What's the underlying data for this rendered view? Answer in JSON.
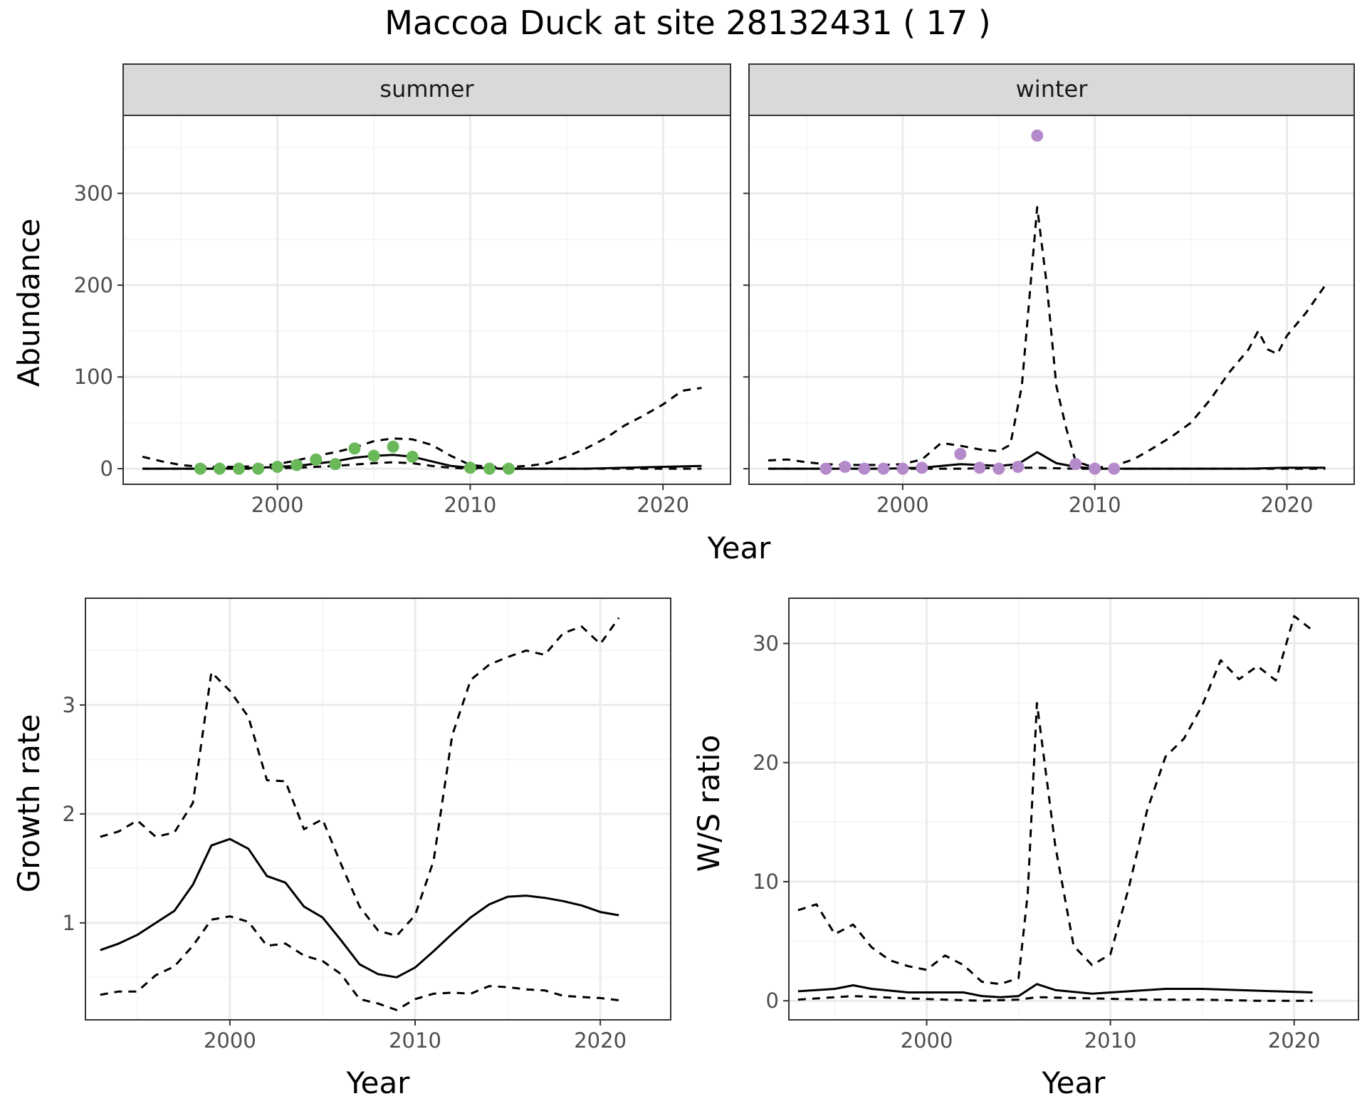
{
  "title": "Maccoa Duck at site 28132431 ( 17 )",
  "colors": {
    "summer_points": "#6ab85a",
    "winter_points": "#b58acb",
    "lines": "#000000",
    "grid_major": "#ebebeb",
    "grid_minor": "#f4f4f4",
    "strip_fill": "#d9d9d9",
    "panel_border": "#333333"
  },
  "chart_data": [
    {
      "type": "line",
      "panel": "summer",
      "strip_label": "summer",
      "xlabel": "Year",
      "ylabel": "Abundance",
      "xlim": [
        1992,
        2023.5
      ],
      "ylim": [
        -17,
        385
      ],
      "x_ticks": [
        2000,
        2010,
        2020
      ],
      "y_ticks": [
        0,
        100,
        200,
        300
      ],
      "grid": true,
      "series": [
        {
          "role": "mean",
          "style": "solid",
          "x": [
            1993,
            1995,
            1997,
            1999,
            2001,
            2003,
            2004,
            2005,
            2006,
            2007,
            2008,
            2009,
            2010,
            2012,
            2014,
            2016,
            2018,
            2020,
            2022
          ],
          "y": [
            0,
            0,
            0,
            1,
            3,
            8,
            12,
            14,
            15,
            13,
            8,
            3,
            1,
            0,
            0,
            0,
            1,
            2,
            3
          ]
        },
        {
          "role": "upper",
          "style": "dashed",
          "x": [
            1993,
            1994,
            1995,
            1996,
            1997,
            1998,
            1999,
            2000,
            2001,
            2002,
            2003,
            2004,
            2005,
            2006,
            2007,
            2008,
            2009,
            2010,
            2011,
            2012,
            2013,
            2014,
            2015,
            2016,
            2017,
            2018,
            2019,
            2020,
            2021,
            2022
          ],
          "y": [
            13,
            8,
            4,
            2,
            2,
            2,
            3,
            5,
            9,
            14,
            18,
            23,
            30,
            33,
            32,
            26,
            14,
            4,
            2,
            2,
            3,
            6,
            13,
            22,
            33,
            47,
            58,
            70,
            85,
            88
          ]
        },
        {
          "role": "lower",
          "style": "dashed",
          "x": [
            1993,
            1996,
            1999,
            2001,
            2003,
            2005,
            2006,
            2007,
            2008,
            2009,
            2010,
            2012,
            2015,
            2018,
            2020,
            2022
          ],
          "y": [
            0,
            0,
            0,
            1,
            3,
            6,
            7,
            6,
            3,
            1,
            0,
            0,
            0,
            0,
            0,
            0
          ]
        },
        {
          "role": "observed",
          "style": "points",
          "x": [
            1996,
            1997,
            1998,
            1999,
            2000,
            2001,
            2002,
            2003,
            2004,
            2005,
            2006,
            2007,
            2010,
            2011,
            2012
          ],
          "y": [
            0,
            0,
            0,
            0,
            2,
            4,
            10,
            5,
            22,
            14,
            24,
            13,
            1,
            0,
            0
          ]
        }
      ]
    },
    {
      "type": "line",
      "panel": "winter",
      "strip_label": "winter",
      "xlabel": "Year",
      "ylabel": "Abundance",
      "xlim": [
        1992,
        2023.5
      ],
      "ylim": [
        -17,
        385
      ],
      "x_ticks": [
        2000,
        2010,
        2020
      ],
      "y_ticks": [
        0,
        100,
        200,
        300
      ],
      "grid": true,
      "series": [
        {
          "role": "mean",
          "style": "solid",
          "x": [
            1993,
            1995,
            1997,
            1999,
            2001,
            2002,
            2003,
            2004,
            2005,
            2006,
            2007,
            2008,
            2009,
            2010,
            2012,
            2015,
            2018,
            2020,
            2022
          ],
          "y": [
            0,
            0,
            0,
            0,
            1,
            3,
            5,
            4,
            3,
            5,
            18,
            6,
            2,
            0,
            0,
            0,
            0,
            1,
            1
          ]
        },
        {
          "role": "upper",
          "style": "dashed",
          "x": [
            1993,
            1994,
            1995,
            1996,
            1997,
            1998,
            1999,
            2000,
            2001,
            2002,
            2003,
            2004,
            2005,
            2005.6,
            2006.2,
            2007,
            2007.5,
            2008,
            2008.5,
            2009,
            2010,
            2011,
            2012,
            2013,
            2014,
            2015,
            2016,
            2017,
            2018,
            2018.5,
            2019,
            2019.5,
            2020,
            2021,
            2022
          ],
          "y": [
            9,
            10,
            7,
            5,
            4,
            4,
            4,
            5,
            10,
            28,
            25,
            21,
            19,
            26,
            90,
            285,
            200,
            90,
            45,
            8,
            1,
            3,
            10,
            22,
            35,
            50,
            75,
            105,
            130,
            150,
            130,
            125,
            145,
            170,
            200
          ]
        },
        {
          "role": "lower",
          "style": "dashed",
          "x": [
            1993,
            1996,
            1999,
            2001,
            2003,
            2005,
            2007,
            2009,
            2011,
            2015,
            2020,
            2022
          ],
          "y": [
            0,
            0,
            0,
            0,
            0,
            1,
            1,
            0,
            0,
            0,
            0,
            0
          ]
        },
        {
          "role": "observed",
          "style": "points",
          "x": [
            1996,
            1997,
            1998,
            1999,
            2000,
            2001,
            2003,
            2004,
            2005,
            2006,
            2007,
            2009,
            2010,
            2011
          ],
          "y": [
            0,
            2,
            0,
            0,
            0,
            1,
            16,
            1,
            0,
            2,
            363,
            5,
            0,
            0
          ]
        }
      ]
    },
    {
      "type": "line",
      "panel": "growth",
      "xlabel": "Year",
      "ylabel": "Growth rate",
      "xlim": [
        1992.2,
        2023.8
      ],
      "ylim": [
        0.11,
        3.98
      ],
      "x_ticks": [
        2000,
        2010,
        2020
      ],
      "y_ticks": [
        1,
        2,
        3
      ],
      "grid": true,
      "series": [
        {
          "role": "mean",
          "style": "solid",
          "x": [
            1993,
            1994,
            1995,
            1996,
            1997,
            1998,
            1999,
            2000,
            2001,
            2002,
            2003,
            2004,
            2005,
            2006,
            2007,
            2008,
            2009,
            2010,
            2011,
            2012,
            2013,
            2014,
            2015,
            2016,
            2017,
            2018,
            2019,
            2020,
            2021
          ],
          "y": [
            0.75,
            0.81,
            0.89,
            1.0,
            1.11,
            1.35,
            1.71,
            1.77,
            1.68,
            1.43,
            1.37,
            1.15,
            1.05,
            0.84,
            0.62,
            0.53,
            0.5,
            0.59,
            0.74,
            0.9,
            1.05,
            1.17,
            1.24,
            1.25,
            1.23,
            1.2,
            1.16,
            1.1,
            1.07
          ]
        },
        {
          "role": "upper",
          "style": "dashed",
          "x": [
            1993,
            1994,
            1995,
            1996,
            1997,
            1998,
            1999,
            2000,
            2001,
            2002,
            2003,
            2004,
            2005,
            2006,
            2007,
            2008,
            2009,
            2010,
            2011,
            2012,
            2013,
            2014,
            2015,
            2016,
            2017,
            2018,
            2019,
            2020,
            2021
          ],
          "y": [
            1.79,
            1.84,
            1.94,
            1.79,
            1.83,
            2.1,
            3.3,
            3.13,
            2.89,
            2.31,
            2.3,
            1.86,
            1.95,
            1.54,
            1.15,
            0.93,
            0.88,
            1.07,
            1.57,
            2.72,
            3.23,
            3.37,
            3.44,
            3.5,
            3.46,
            3.66,
            3.72,
            3.56,
            3.8
          ]
        },
        {
          "role": "lower",
          "style": "dashed",
          "x": [
            1993,
            1994,
            1995,
            1996,
            1997,
            1998,
            1999,
            2000,
            2001,
            2002,
            2003,
            2004,
            2005,
            2006,
            2007,
            2008,
            2009,
            2010,
            2011,
            2012,
            2013,
            2014,
            2015,
            2016,
            2017,
            2018,
            2019,
            2020,
            2021
          ],
          "y": [
            0.34,
            0.37,
            0.37,
            0.52,
            0.6,
            0.79,
            1.03,
            1.06,
            1.01,
            0.79,
            0.81,
            0.7,
            0.65,
            0.53,
            0.3,
            0.26,
            0.2,
            0.3,
            0.35,
            0.36,
            0.35,
            0.42,
            0.41,
            0.39,
            0.38,
            0.33,
            0.32,
            0.31,
            0.29
          ]
        }
      ]
    },
    {
      "type": "line",
      "panel": "ratio",
      "xlabel": "Year",
      "ylabel": "W/S ratio",
      "xlim": [
        1992.5,
        2023.5
      ],
      "ylim": [
        -1.6,
        33.8
      ],
      "x_ticks": [
        2000,
        2010,
        2020
      ],
      "y_ticks": [
        0,
        10,
        20,
        30
      ],
      "grid": true,
      "series": [
        {
          "role": "mean",
          "style": "solid",
          "x": [
            1993,
            1995,
            1996,
            1997,
            1999,
            2001,
            2002,
            2003,
            2004,
            2005,
            2006,
            2007,
            2009,
            2011,
            2013,
            2015,
            2017,
            2019,
            2021
          ],
          "y": [
            0.8,
            1.0,
            1.3,
            1.0,
            0.7,
            0.7,
            0.7,
            0.4,
            0.3,
            0.4,
            1.4,
            0.9,
            0.6,
            0.8,
            1.0,
            1.0,
            0.9,
            0.8,
            0.7
          ]
        },
        {
          "role": "upper",
          "style": "dashed",
          "x": [
            1993,
            1994,
            1995,
            1996,
            1997,
            1998,
            1999,
            2000,
            2001,
            2002,
            2003,
            2004,
            2005,
            2005.5,
            2006,
            2007,
            2008,
            2009,
            2010,
            2011,
            2012,
            2013,
            2014,
            2015,
            2016,
            2017,
            2018,
            2019,
            2020,
            2021
          ],
          "y": [
            7.6,
            8.1,
            5.6,
            6.4,
            4.5,
            3.4,
            2.9,
            2.6,
            3.8,
            3.0,
            1.6,
            1.4,
            1.9,
            9.0,
            25.0,
            13.0,
            4.6,
            3.0,
            3.9,
            9.5,
            16.0,
            20.5,
            22.0,
            24.8,
            28.6,
            27.0,
            28.1,
            26.9,
            32.3,
            31.1
          ]
        },
        {
          "role": "lower",
          "style": "dashed",
          "x": [
            1993,
            1996,
            1999,
            2001,
            2003,
            2005,
            2006,
            2009,
            2012,
            2015,
            2018,
            2021
          ],
          "y": [
            0.1,
            0.4,
            0.2,
            0.1,
            0.0,
            0.1,
            0.3,
            0.2,
            0.1,
            0.1,
            0.0,
            0.0
          ]
        }
      ]
    }
  ]
}
